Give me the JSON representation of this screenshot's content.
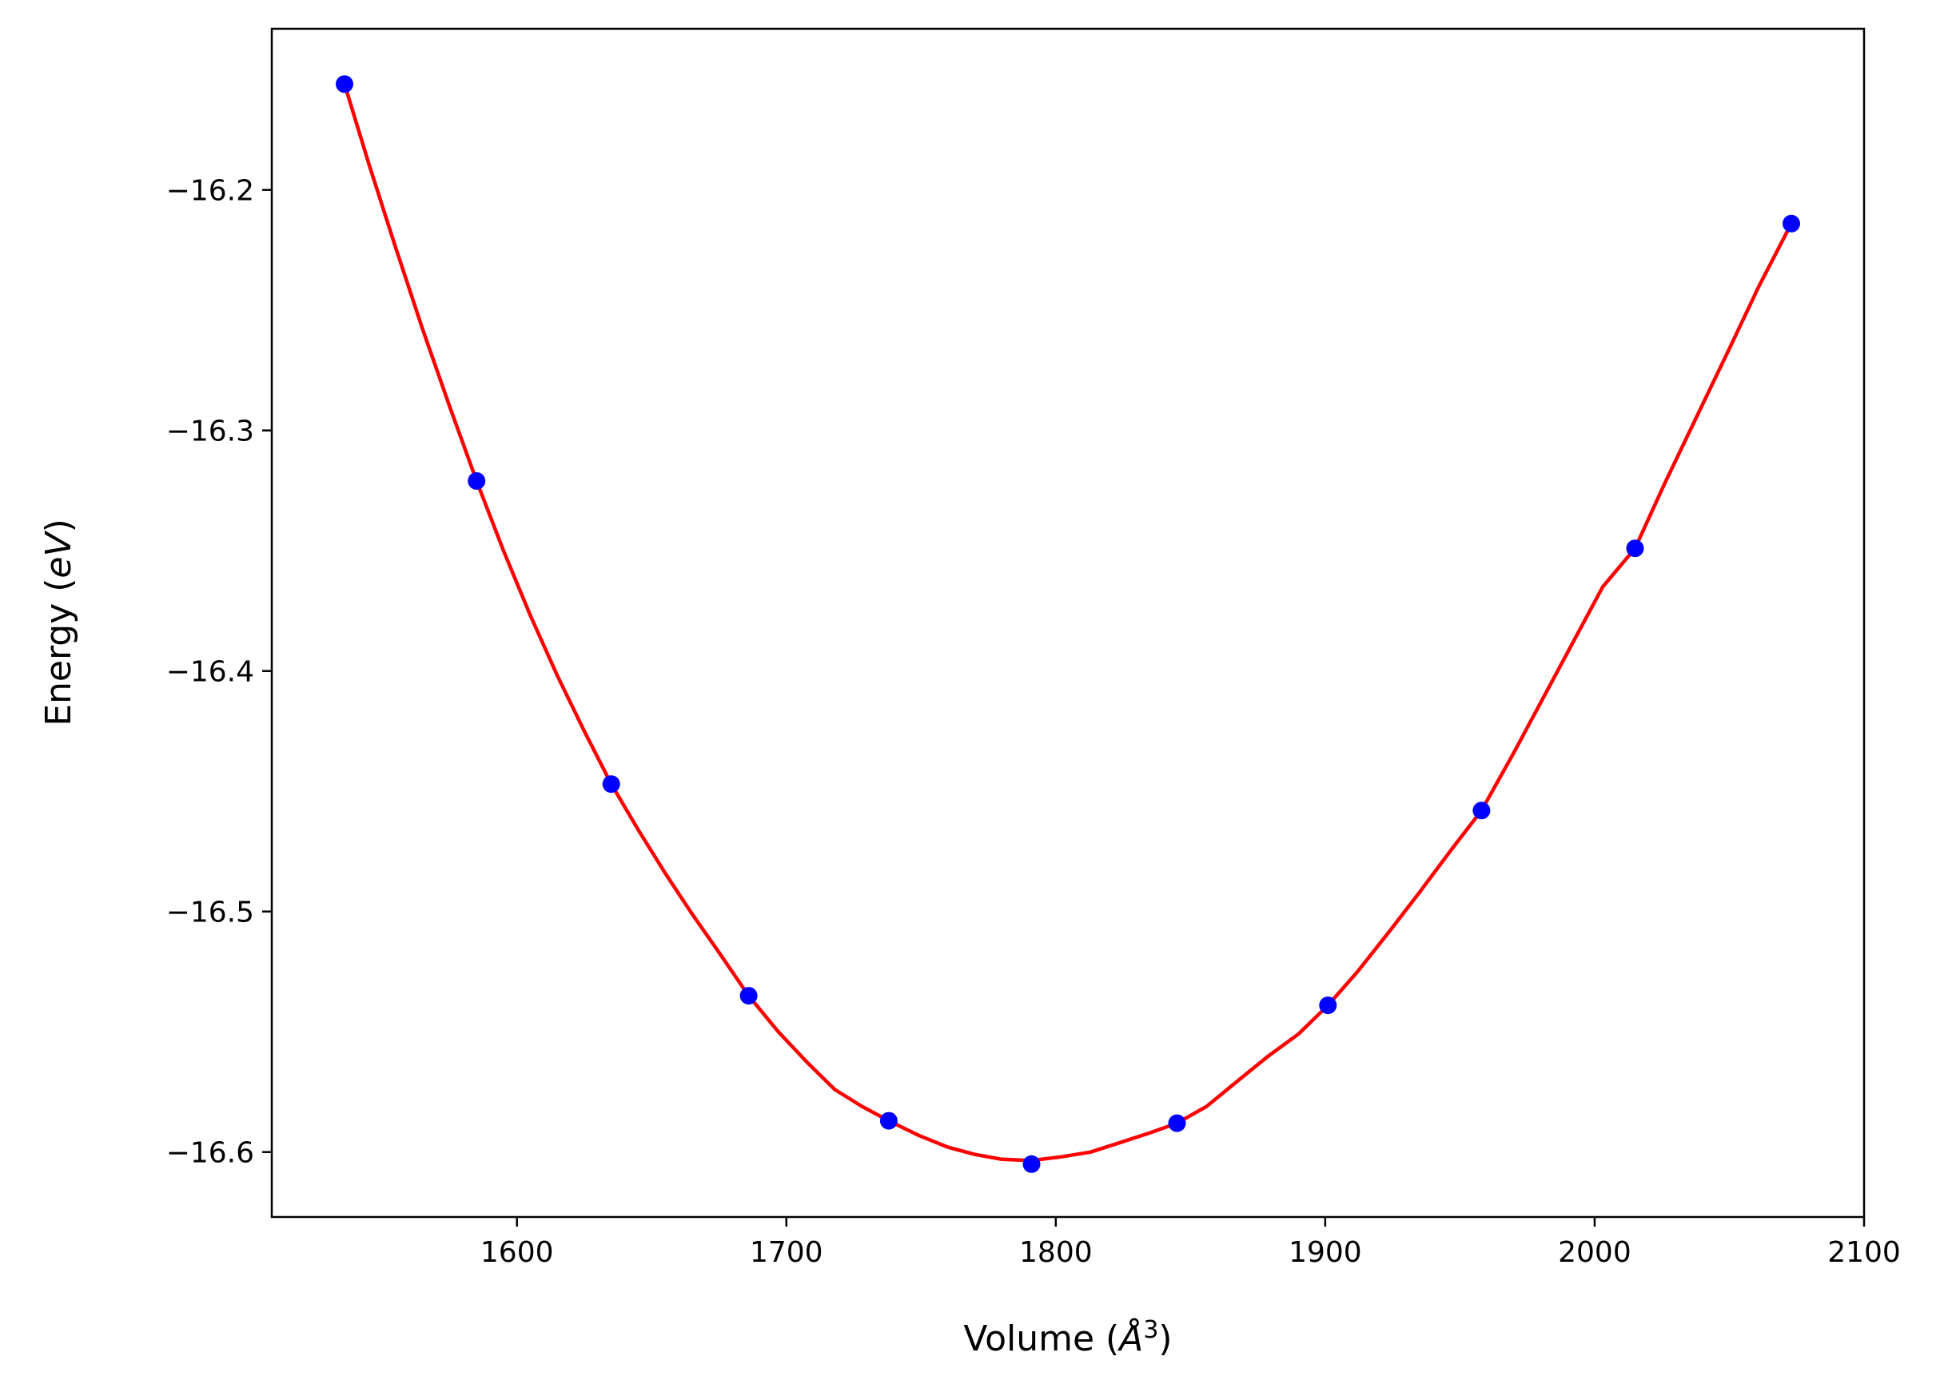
{
  "chart_data": {
    "type": "scatter",
    "title": "",
    "xlabel": {
      "prefix": "Volume (",
      "italic": "Å",
      "sup": "3",
      "suffix": ")"
    },
    "ylabel": {
      "prefix": "Energy (",
      "italic": "eV",
      "suffix": ")"
    },
    "xlim": [
      1509,
      2100
    ],
    "ylim": [
      -16.627,
      -16.133
    ],
    "x_ticks": [
      1600,
      1700,
      1800,
      1900,
      2000,
      2100
    ],
    "x_tick_labels": [
      "1600",
      "1700",
      "1800",
      "1900",
      "2000",
      "2100"
    ],
    "y_ticks": [
      -16.2,
      -16.3,
      -16.4,
      -16.5,
      -16.6
    ],
    "y_tick_labels": [
      "−16.2",
      "−16.3",
      "−16.4",
      "−16.5",
      "−16.6"
    ],
    "grid": false,
    "series": [
      {
        "kind": "points",
        "color": "#0000ff",
        "x": [
          1536,
          1585,
          1635,
          1686,
          1738,
          1791,
          1845,
          1901,
          1958,
          2015,
          2073
        ],
        "y": [
          -16.156,
          -16.321,
          -16.447,
          -16.535,
          -16.587,
          -16.605,
          -16.588,
          -16.539,
          -16.458,
          -16.349,
          -16.214
        ]
      },
      {
        "kind": "fit-curve",
        "color": "#ff0000",
        "x": [
          1536,
          1545,
          1555,
          1565,
          1575,
          1585,
          1595,
          1605,
          1615,
          1625,
          1635,
          1645,
          1655,
          1665,
          1675,
          1686,
          1697,
          1708,
          1718,
          1728,
          1738,
          1749,
          1760,
          1770,
          1780,
          1791,
          1802,
          1813,
          1824,
          1835,
          1845,
          1856,
          1868,
          1879,
          1890,
          1901,
          1912,
          1924,
          1935,
          1947,
          1958,
          1970,
          1981,
          1992,
          2003,
          2015,
          2026,
          2038,
          2050,
          2061,
          2073
        ],
        "y": [
          -16.156,
          -16.189,
          -16.224,
          -16.258,
          -16.29,
          -16.321,
          -16.35,
          -16.377,
          -16.402,
          -16.425,
          -16.447,
          -16.466,
          -16.484,
          -16.501,
          -16.517,
          -16.535,
          -16.55,
          -16.563,
          -16.574,
          -16.581,
          -16.587,
          -16.593,
          -16.598,
          -16.601,
          -16.603,
          -16.6035,
          -16.602,
          -16.6,
          -16.596,
          -16.592,
          -16.588,
          -16.581,
          -16.57,
          -16.56,
          -16.551,
          -16.539,
          -16.525,
          -16.508,
          -16.492,
          -16.474,
          -16.458,
          -16.434,
          -16.411,
          -16.388,
          -16.365,
          -16.349,
          -16.322,
          -16.294,
          -16.266,
          -16.24,
          -16.214
        ]
      }
    ]
  }
}
